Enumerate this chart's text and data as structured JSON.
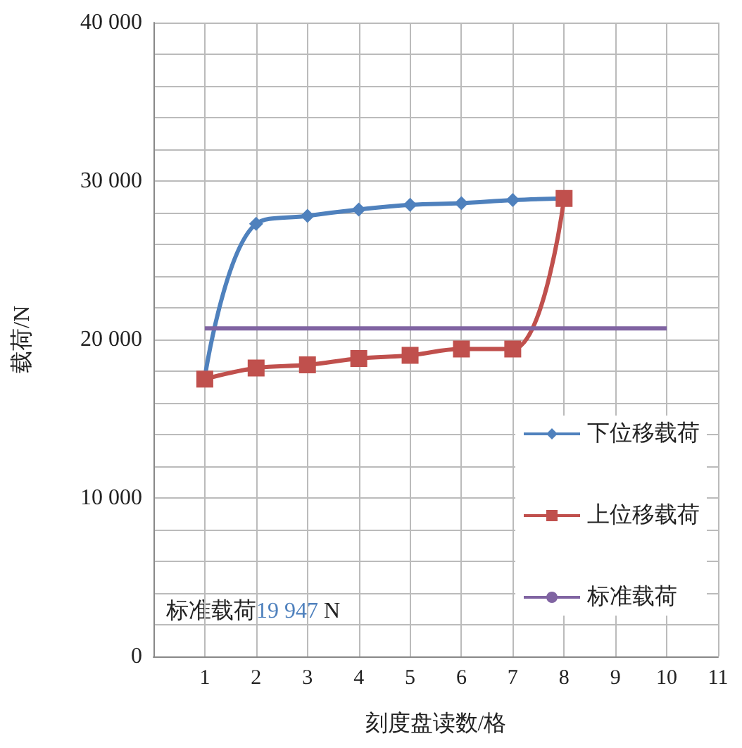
{
  "chart_data": {
    "type": "line",
    "xlabel": "刻度盘读数/格",
    "ylabel": "载荷/N",
    "xlim": [
      0,
      11
    ],
    "xticks": [
      1,
      2,
      3,
      4,
      5,
      6,
      7,
      8,
      9,
      10,
      11
    ],
    "ylim": [
      0,
      40000
    ],
    "yticks": [
      {
        "value": 0,
        "label": "0"
      },
      {
        "value": 2000,
        "label": null
      },
      {
        "value": 4000,
        "label": null
      },
      {
        "value": 6000,
        "label": null
      },
      {
        "value": 8000,
        "label": null
      },
      {
        "value": 10000,
        "label": "10 000"
      },
      {
        "value": 12000,
        "label": null
      },
      {
        "value": 14000,
        "label": null
      },
      {
        "value": 16000,
        "label": null
      },
      {
        "value": 18000,
        "label": null
      },
      {
        "value": 20000,
        "label": "20 000"
      },
      {
        "value": 22000,
        "label": null
      },
      {
        "value": 24000,
        "label": null
      },
      {
        "value": 26000,
        "label": null
      },
      {
        "value": 28000,
        "label": null
      },
      {
        "value": 30000,
        "label": "30 000"
      },
      {
        "value": 32000,
        "label": null
      },
      {
        "value": 34000,
        "label": null
      },
      {
        "value": 36000,
        "label": null
      },
      {
        "value": 38000,
        "label": null
      },
      {
        "value": 40000,
        "label": "40 000"
      }
    ],
    "grid": true,
    "legend": "right",
    "series": [
      {
        "name": "下位移载荷",
        "color": "#4f81bd",
        "marker": "diamond",
        "x": [
          1,
          2,
          3,
          4,
          5,
          6,
          7,
          8
        ],
        "values": [
          17600,
          27300,
          27800,
          28200,
          28500,
          28600,
          28800,
          28900
        ]
      },
      {
        "name": "上位移载荷",
        "color": "#c0504d",
        "marker": "square",
        "x": [
          1,
          2,
          3,
          4,
          5,
          6,
          7,
          8
        ],
        "values": [
          17500,
          18200,
          18400,
          18800,
          19000,
          19400,
          19400,
          28900
        ]
      },
      {
        "name": "标准载荷",
        "color": "#8064a2",
        "marker": "none",
        "x": [
          1,
          10
        ],
        "values": [
          20700,
          20700
        ]
      }
    ],
    "annotations": [
      "标准载荷19 947 N"
    ]
  }
}
